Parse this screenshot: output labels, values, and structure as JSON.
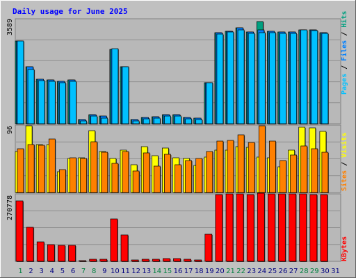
{
  "chart_data": [
    {
      "type": "bar",
      "panel": "top",
      "title": "Daily usage for June 2025",
      "ymax_label": "3589",
      "ylim": [
        0,
        3589
      ],
      "legend_vertical": [
        "Pages",
        "Files",
        "Hits"
      ],
      "legend_colors": {
        "pages": "#00c0ff",
        "files": "#0080ff",
        "hits": "#00a080"
      },
      "categories": [
        "1",
        "2",
        "3",
        "4",
        "5",
        "6",
        "7",
        "8",
        "9",
        "10",
        "11",
        "12",
        "13",
        "14",
        "15",
        "16",
        "17",
        "18",
        "19",
        "20",
        "21",
        "22",
        "23",
        "24",
        "25",
        "26",
        "27",
        "28",
        "29",
        "30",
        "31"
      ],
      "series": [
        {
          "name": "Hits",
          "color": "#00a080",
          "values": [
            2820,
            1950,
            1520,
            1490,
            1460,
            1500,
            150,
            300,
            250,
            2550,
            1960,
            150,
            210,
            240,
            320,
            320,
            210,
            200,
            1400,
            3110,
            3170,
            3270,
            3140,
            3500,
            3160,
            3140,
            3140,
            3200,
            3200,
            3120,
            0
          ]
        },
        {
          "name": "Files",
          "color": "#0080ff",
          "values": [
            2820,
            1950,
            1520,
            1490,
            1460,
            1500,
            150,
            300,
            250,
            2550,
            1960,
            150,
            210,
            240,
            320,
            320,
            210,
            200,
            1400,
            3110,
            3170,
            3270,
            3140,
            3210,
            3160,
            3140,
            3140,
            3200,
            3200,
            3120,
            0
          ]
        },
        {
          "name": "Pages",
          "color": "#00c0ff",
          "values": [
            2820,
            1850,
            1470,
            1440,
            1400,
            1450,
            100,
            250,
            200,
            2570,
            1950,
            100,
            160,
            190,
            270,
            270,
            160,
            150,
            1400,
            3060,
            3130,
            3220,
            3100,
            3110,
            3120,
            3100,
            3100,
            3200,
            3180,
            3100,
            0
          ]
        }
      ]
    },
    {
      "type": "bar",
      "panel": "middle",
      "ymax_label": "96",
      "ylim": [
        0,
        96
      ],
      "legend_vertical": [
        "Sites",
        "Visits"
      ],
      "legend_colors": {
        "sites": "#ff8000",
        "visits": "#ffff00"
      },
      "categories": [
        "1",
        "2",
        "3",
        "4",
        "5",
        "6",
        "7",
        "8",
        "9",
        "10",
        "11",
        "12",
        "13",
        "14",
        "15",
        "16",
        "17",
        "18",
        "19",
        "20",
        "21",
        "22",
        "23",
        "24",
        "25",
        "26",
        "27",
        "28",
        "29",
        "30",
        "31"
      ],
      "series": [
        {
          "name": "Visits",
          "color": "#ffff00",
          "values": [
            58,
            95,
            68,
            68,
            30,
            48,
            49,
            88,
            58,
            48,
            60,
            40,
            65,
            52,
            63,
            49,
            48,
            39,
            50,
            60,
            60,
            65,
            64,
            50,
            49,
            37,
            60,
            93,
            92,
            87,
            0
          ]
        },
        {
          "name": "Sites",
          "color": "#ff8000",
          "values": [
            62,
            68,
            67,
            76,
            33,
            49,
            48,
            72,
            57,
            42,
            58,
            31,
            56,
            38,
            54,
            40,
            46,
            48,
            58,
            73,
            74,
            82,
            71,
            95,
            73,
            46,
            53,
            66,
            62,
            57,
            0
          ]
        }
      ]
    },
    {
      "type": "bar",
      "panel": "bottom",
      "ymax_label": "270778",
      "ylim": [
        0,
        270778
      ],
      "legend_vertical": [
        "KBytes"
      ],
      "legend_colors": {
        "kbytes": "#ff0000"
      },
      "categories": [
        "1",
        "2",
        "3",
        "4",
        "5",
        "6",
        "7",
        "8",
        "9",
        "10",
        "11",
        "12",
        "13",
        "14",
        "15",
        "16",
        "17",
        "18",
        "19",
        "20",
        "21",
        "22",
        "23",
        "24",
        "25",
        "26",
        "27",
        "28",
        "29",
        "30",
        "31"
      ],
      "series": [
        {
          "name": "KBytes",
          "color": "#ff0000",
          "values": [
            243000,
            137000,
            77000,
            67000,
            65000,
            65000,
            4000,
            9000,
            7000,
            171000,
            107000,
            6000,
            8000,
            9000,
            12000,
            11000,
            7000,
            6000,
            110000,
            268000,
            270000,
            272000,
            268000,
            273000,
            272000,
            270000,
            270000,
            270000,
            268000,
            268000,
            0
          ]
        }
      ]
    }
  ],
  "xlabels": [
    "1",
    "2",
    "3",
    "4",
    "5",
    "6",
    "7",
    "8",
    "9",
    "10",
    "11",
    "12",
    "13",
    "14",
    "15",
    "16",
    "17",
    "18",
    "19",
    "20",
    "21",
    "22",
    "23",
    "24",
    "25",
    "26",
    "27",
    "28",
    "29",
    "30",
    "31"
  ],
  "weekend_days": [
    1,
    7,
    8,
    14,
    15,
    21,
    22,
    28,
    29
  ],
  "colors": {
    "background": "#c0c0c0",
    "plot": "#b8b8b8",
    "grid": "#808080",
    "title": "#0000ff",
    "weekend_label": "#008040",
    "weekday_label": "#000080"
  }
}
